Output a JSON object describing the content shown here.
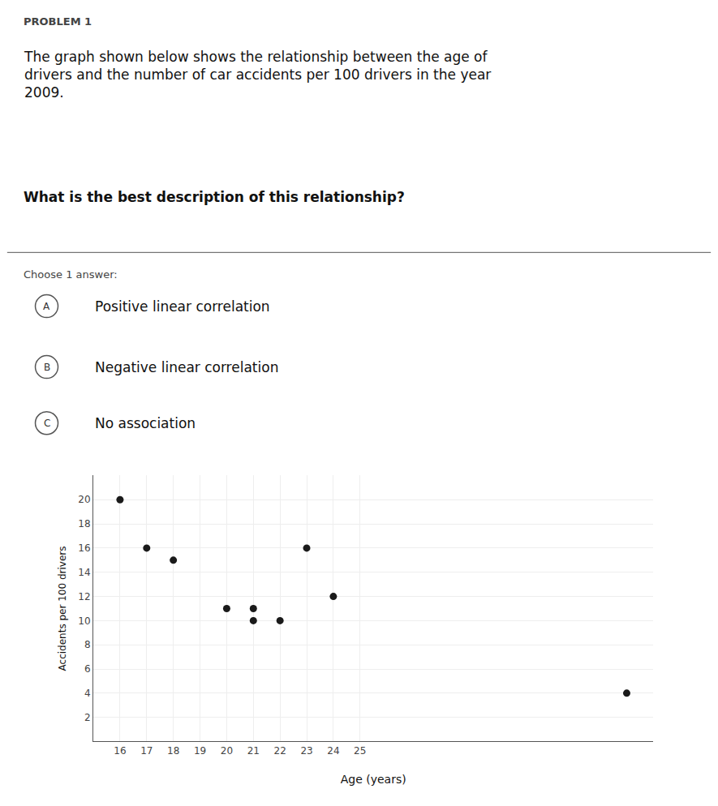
{
  "chart_data": {
    "type": "scatter",
    "title": "PROBLEM 1",
    "annotations": [
      "The graph shown below shows the relationship between the age of\ndrivers and the number of car accidents per 100 drivers in the year\n2009.",
      "What is the best description of this relationship?",
      "Choose 1 answer:",
      "A",
      "Positive linear correlation",
      "B",
      "Negative linear correlation",
      "C",
      "No association"
    ],
    "x": [
      16,
      17,
      18,
      20,
      21,
      21,
      22,
      23,
      24,
      35
    ],
    "values": [
      20,
      16,
      15,
      11,
      11,
      10,
      10,
      16,
      12,
      4
    ],
    "xlabel": "Age (years)",
    "ylabel": "Accidents per 100 drivers",
    "xlim": [
      15,
      36
    ],
    "ylim": [
      0,
      22
    ],
    "xticks": [
      16,
      17,
      18,
      19,
      20,
      21,
      22,
      23,
      24,
      25
    ],
    "yticks": [
      2,
      4,
      6,
      8,
      10,
      12,
      14,
      16,
      18,
      20
    ],
    "color": "#1a1a1a",
    "grid": true
  }
}
